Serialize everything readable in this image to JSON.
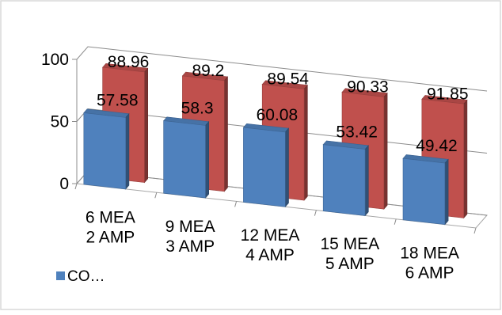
{
  "chart_data": {
    "type": "bar",
    "style": "3d-clustered-column",
    "categories": [
      "6 MEA\n2 AMP",
      "9 MEA\n3 AMP",
      "12 MEA\n4 AMP",
      "15 MEA\n5 AMP",
      "18 MEA\n6 AMP"
    ],
    "series": [
      {
        "values": [
          57.58,
          58.3,
          60.08,
          53.42,
          49.42
        ],
        "color": "#4f81bd"
      },
      {
        "values": [
          88.96,
          89.2,
          89.54,
          90.33,
          91.85
        ],
        "color": "#c0504d"
      }
    ],
    "data_labels": {
      "front": [
        "57.58",
        "58.3",
        "60.08",
        "53.42",
        "49.42"
      ],
      "back": [
        "88.96",
        "89.2",
        "89.54",
        "90.33",
        "91.85"
      ]
    },
    "y_ticks": [
      "0",
      "50",
      "100"
    ],
    "ylim": [
      0,
      100
    ],
    "grid": true,
    "legend": {
      "position": "bottom-left",
      "entries": [
        "CO…"
      ]
    }
  }
}
